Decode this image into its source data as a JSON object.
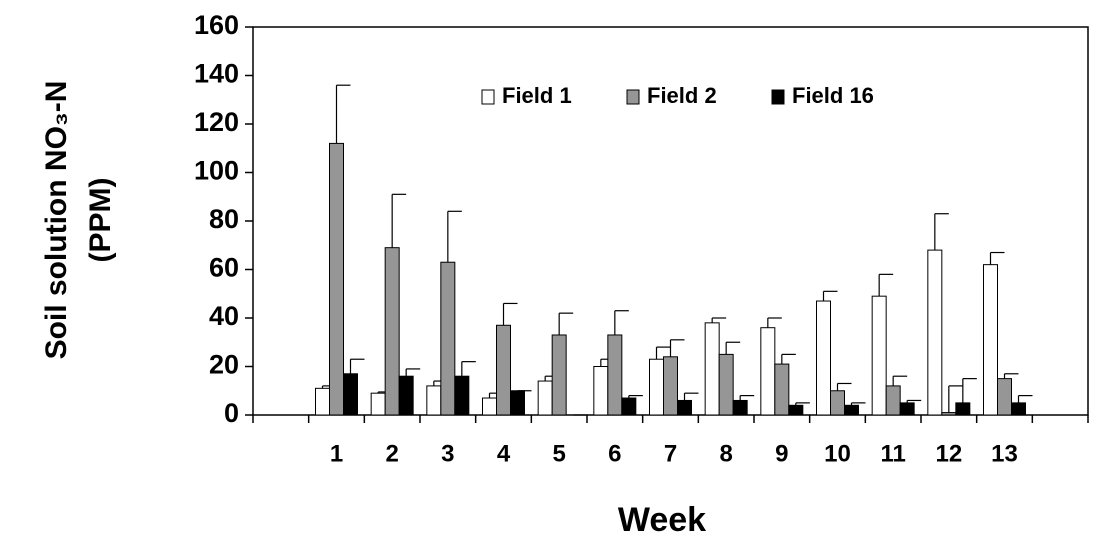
{
  "chart_data": {
    "type": "bar",
    "ylabel": [
      "Soil solution NO₃-N",
      "(PPM)"
    ],
    "xlabel": "Week",
    "categories": [
      null,
      "1",
      "2",
      "3",
      "4",
      "5",
      "6",
      "7",
      "8",
      "9",
      "10",
      "11",
      "12",
      "13",
      null
    ],
    "series": [
      {
        "name": "Field 1",
        "color": "#ffffff",
        "values": [
          null,
          11,
          9,
          12,
          7,
          14,
          20,
          23,
          38,
          36,
          47,
          49,
          68,
          62,
          null
        ],
        "errors": [
          null,
          1,
          0.5,
          2,
          2,
          2,
          3,
          5,
          2,
          4,
          4,
          9,
          15,
          5,
          null
        ]
      },
      {
        "name": "Field 2",
        "color": "#969696",
        "values": [
          null,
          112,
          69,
          63,
          37,
          33,
          33,
          24,
          25,
          21,
          10,
          12,
          1,
          15,
          null
        ],
        "errors": [
          null,
          24,
          22,
          21,
          9,
          9,
          10,
          7,
          5,
          4,
          3,
          4,
          11,
          2,
          null
        ]
      },
      {
        "name": "Field 16",
        "color": "#000000",
        "values": [
          null,
          17,
          16,
          16,
          10,
          0,
          7,
          6,
          6,
          4,
          4,
          5,
          5,
          5,
          null
        ],
        "errors": [
          null,
          6,
          3,
          6,
          0,
          0,
          1,
          3,
          2,
          1,
          1,
          1,
          10,
          3,
          null
        ]
      }
    ],
    "ylim": [
      0,
      160
    ],
    "yticks": [
      0,
      20,
      40,
      60,
      80,
      100,
      120,
      140,
      160
    ],
    "legend": "top"
  }
}
